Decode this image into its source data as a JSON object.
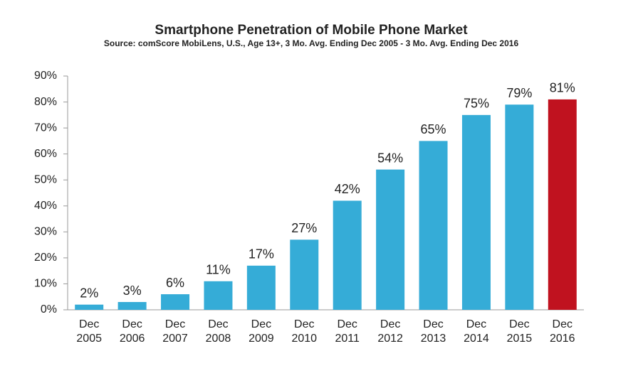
{
  "chart_data": {
    "type": "bar",
    "title": "Smartphone Penetration of Mobile Phone Market",
    "subtitle": "Source: comScore MobiLens, U.S., Age 13+, 3 Mo. Avg. Ending Dec 2005 - 3 Mo. Avg. Ending Dec 2016",
    "categories": [
      "Dec 2005",
      "Dec 2006",
      "Dec 2007",
      "Dec 2008",
      "Dec 2009",
      "Dec 2010",
      "Dec 2011",
      "Dec 2012",
      "Dec 2013",
      "Dec 2014",
      "Dec 2015",
      "Dec 2016"
    ],
    "values": [
      2,
      3,
      6,
      11,
      17,
      27,
      42,
      54,
      65,
      75,
      79,
      81
    ],
    "value_labels": [
      "2%",
      "3%",
      "6%",
      "11%",
      "17%",
      "27%",
      "42%",
      "54%",
      "65%",
      "75%",
      "79%",
      "81%"
    ],
    "colors": [
      "#35acd7",
      "#35acd7",
      "#35acd7",
      "#35acd7",
      "#35acd7",
      "#35acd7",
      "#35acd7",
      "#35acd7",
      "#35acd7",
      "#35acd7",
      "#35acd7",
      "#c0121f"
    ],
    "ylim": [
      0,
      90
    ],
    "yticks": [
      {
        "value": 0,
        "label": "0%"
      },
      {
        "value": 10,
        "label": "10%"
      },
      {
        "value": 20,
        "label": "20%"
      },
      {
        "value": 30,
        "label": "30%"
      },
      {
        "value": 40,
        "label": "40%"
      },
      {
        "value": 50,
        "label": "50%"
      },
      {
        "value": 60,
        "label": "60%"
      },
      {
        "value": 70,
        "label": "70%"
      },
      {
        "value": 80,
        "label": "80%"
      },
      {
        "value": 90,
        "label": "90%"
      }
    ],
    "grid": false
  }
}
